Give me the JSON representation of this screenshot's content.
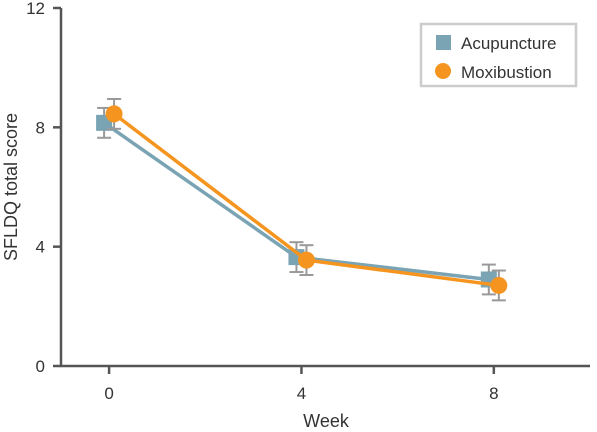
{
  "chart_data": {
    "type": "line",
    "title": "",
    "xlabel": "Week",
    "ylabel": "SFLDQ total score",
    "x": [
      0,
      4,
      8
    ],
    "xticks": [
      "0",
      "4",
      "8"
    ],
    "yticks": [
      "0",
      "4",
      "8",
      "12"
    ],
    "ylim": [
      0,
      12
    ],
    "xlim": [
      -1,
      10
    ],
    "grid": false,
    "legend_position": "top-right",
    "series": [
      {
        "name": "Acupuncture",
        "marker": "square",
        "color": "#7aa3b4",
        "values": [
          8.15,
          3.65,
          2.9
        ],
        "error": [
          0.5,
          0.5,
          0.5
        ]
      },
      {
        "name": "Moxibustion",
        "marker": "circle",
        "color": "#f5951f",
        "values": [
          8.45,
          3.55,
          2.7
        ],
        "error": [
          0.5,
          0.5,
          0.5
        ]
      }
    ]
  }
}
